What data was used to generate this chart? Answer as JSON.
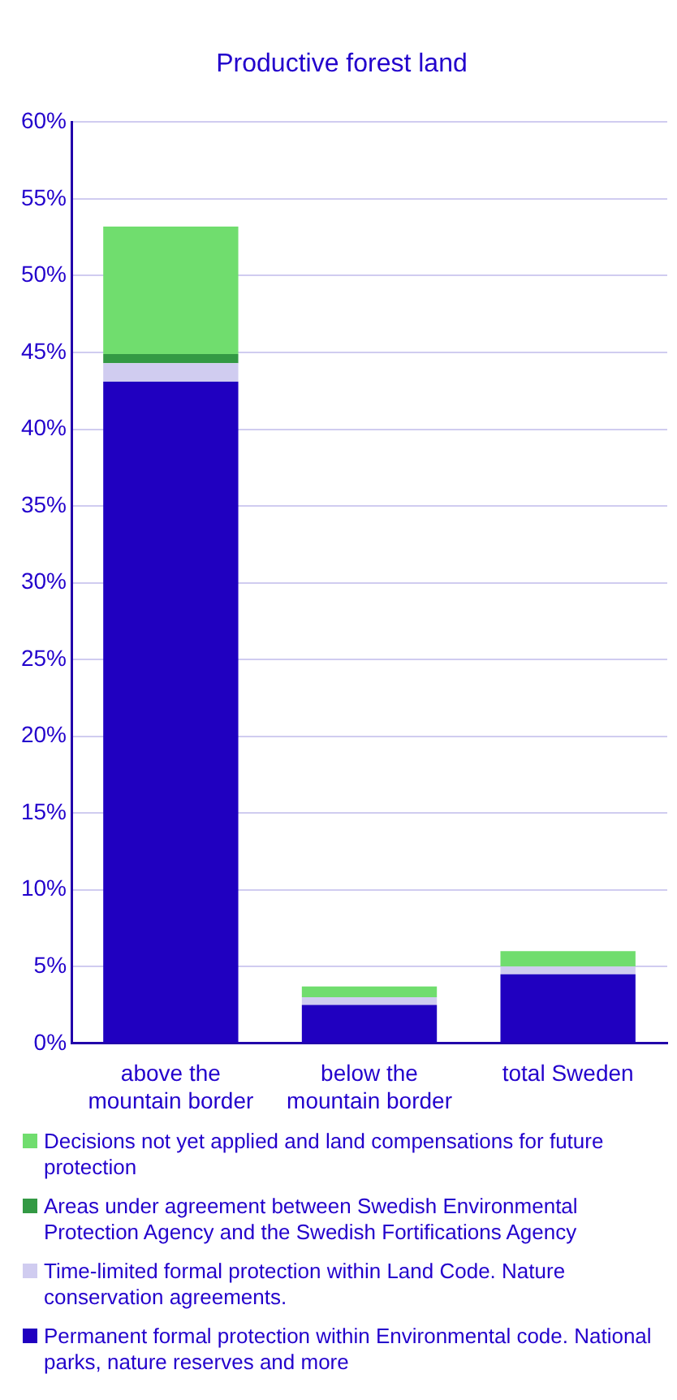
{
  "chart_data": {
    "type": "bar",
    "title": "Productive forest land",
    "categories": [
      "above the mountain border",
      "below the mountain border",
      "total Sweden"
    ],
    "stacked": true,
    "series": [
      {
        "name": "Permanent formal protection within Environmental code. National parks, nature reserves and more",
        "color": "#2000c0",
        "values": [
          43.1,
          2.5,
          4.5
        ]
      },
      {
        "name": "Time-limited formal protection within Land Code. Nature conservation agreements.",
        "color": "#d0ccf0",
        "values": [
          1.2,
          0.5,
          0.5
        ]
      },
      {
        "name": "Areas under agreement between Swedish Environmental Protection Agency and the Swedish Fortifications Agency",
        "color": "#339944",
        "values": [
          0.6,
          0,
          0
        ]
      },
      {
        "name": "Decisions not yet applied and land compensations for future protection",
        "color": "#70dd6e",
        "values": [
          8.3,
          0.7,
          1.0
        ]
      }
    ],
    "ylim": [
      0,
      60
    ],
    "yticks": [
      {
        "value": 0,
        "label": "0%"
      },
      {
        "value": 5,
        "label": "5%"
      },
      {
        "value": 10,
        "label": "10%"
      },
      {
        "value": 15,
        "label": "15%"
      },
      {
        "value": 20,
        "label": "20%"
      },
      {
        "value": 25,
        "label": "25%"
      },
      {
        "value": 30,
        "label": "30%"
      },
      {
        "value": 35,
        "label": "35%"
      },
      {
        "value": 40,
        "label": "40%"
      },
      {
        "value": 45,
        "label": "45%"
      },
      {
        "value": 50,
        "label": "50%"
      },
      {
        "value": 55,
        "label": "55%"
      },
      {
        "value": 60,
        "label": "60%"
      }
    ],
    "grid": "y",
    "legend": "bottom"
  }
}
